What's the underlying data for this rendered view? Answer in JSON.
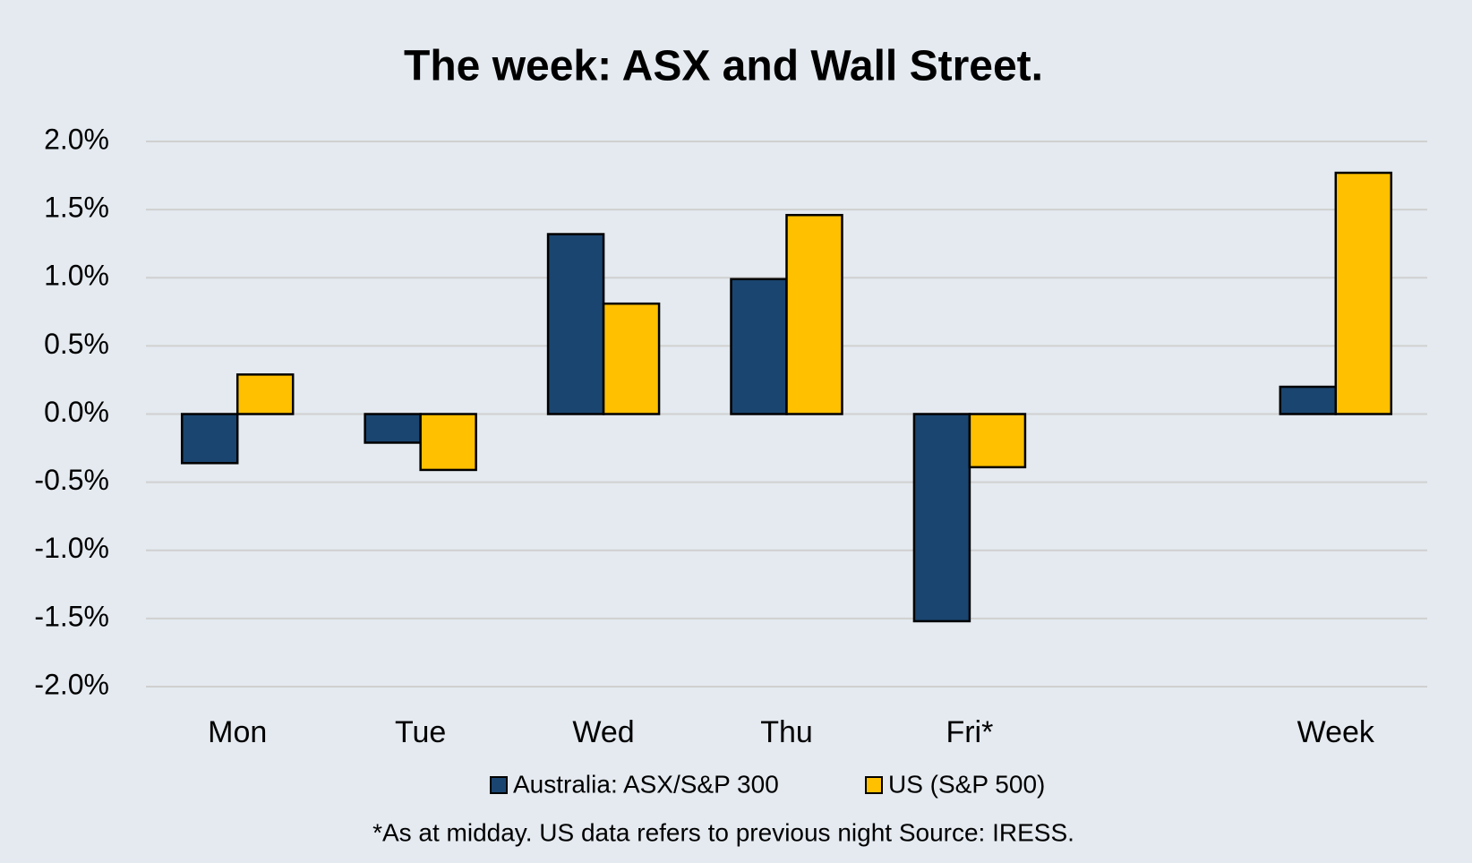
{
  "chart_data": {
    "type": "bar",
    "title": "The week:  ASX and Wall Street.",
    "categories": [
      "Mon",
      "Tue",
      "Wed",
      "Thu",
      "Fri*",
      null,
      "Week"
    ],
    "series": [
      {
        "name": "Australia: ASX/S&P 300",
        "color": "#1a4570",
        "values": [
          -0.36,
          -0.21,
          1.32,
          0.99,
          -1.52,
          null,
          0.2
        ]
      },
      {
        "name": "US (S&P 500)",
        "color": "#ffc000",
        "values": [
          0.29,
          -0.41,
          0.81,
          1.46,
          -0.39,
          null,
          1.77
        ]
      }
    ],
    "ylim": [
      -2,
      2
    ],
    "yticks": [
      {
        "value": 2,
        "label": "2.0%"
      },
      {
        "value": 1.5,
        "label": "1.5%"
      },
      {
        "value": 1,
        "label": "1.0%"
      },
      {
        "value": 0.5,
        "label": "0.5%"
      },
      {
        "value": 0,
        "label": "0.0%"
      },
      {
        "value": -0.5,
        "label": "-0.5%"
      },
      {
        "value": -1,
        "label": "-1.0%"
      },
      {
        "value": -1.5,
        "label": "-1.5%"
      },
      {
        "value": -2,
        "label": "-2.0%"
      }
    ],
    "grid": true,
    "legend": "bottom",
    "footnote": "*As at midday. US data refers to previous night  Source:  IRESS."
  }
}
